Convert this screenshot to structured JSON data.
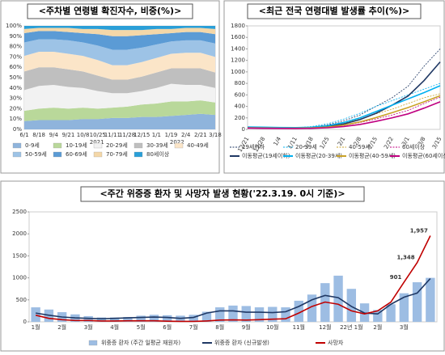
{
  "chart_data": [
    {
      "type": "area",
      "title": "<주차별 연령별 확진자수, 비중(%)>",
      "categories": [
        "6/1",
        "8/18",
        "9/4",
        "9/21",
        "10/8",
        "10/25",
        "11/11",
        "11/28",
        "12/15",
        "1/1",
        "1/19",
        "2/4",
        "2/21",
        "3/18"
      ],
      "annotations": [
        "2021",
        "2022"
      ],
      "ylim": [
        0,
        100
      ],
      "yticks": [
        {
          "value": 0,
          "label": "0%"
        },
        {
          "value": 10,
          "label": "10%"
        },
        {
          "value": 20,
          "label": "20%"
        },
        {
          "value": 30,
          "label": "30%"
        },
        {
          "value": 40,
          "label": "40%"
        },
        {
          "value": 50,
          "label": "50%"
        },
        {
          "value": 60,
          "label": "60%"
        },
        {
          "value": 70,
          "label": "70%"
        },
        {
          "value": 80,
          "label": "80%"
        },
        {
          "value": 90,
          "label": "90%"
        },
        {
          "value": 100,
          "label": "100%"
        }
      ],
      "grid": true,
      "series": [
        {
          "name": "0-9세",
          "color": "#8fb4dc",
          "values": [
            8,
            9,
            9,
            9,
            10,
            10,
            11,
            11,
            12,
            12,
            13,
            14,
            15,
            14
          ]
        },
        {
          "name": "10-19세",
          "color": "#b9d89a",
          "values": [
            10,
            11,
            12,
            11,
            11,
            10,
            10,
            11,
            12,
            13,
            14,
            13,
            13,
            12
          ]
        },
        {
          "name": "20-29세",
          "color": "#f2f2f2",
          "values": [
            20,
            22,
            22,
            21,
            19,
            17,
            14,
            13,
            13,
            15,
            17,
            16,
            15,
            14
          ]
        },
        {
          "name": "30-39세",
          "color": "#bfbfbf",
          "values": [
            18,
            18,
            17,
            17,
            16,
            15,
            13,
            13,
            14,
            15,
            15,
            16,
            16,
            15
          ]
        },
        {
          "name": "40-49세",
          "color": "#fbe5c8",
          "values": [
            15,
            15,
            15,
            15,
            15,
            15,
            14,
            14,
            14,
            14,
            14,
            15,
            15,
            15
          ]
        },
        {
          "name": "50-59세",
          "color": "#9dc3e6",
          "values": [
            13,
            12,
            12,
            13,
            13,
            14,
            15,
            15,
            14,
            13,
            12,
            12,
            12,
            13
          ]
        },
        {
          "name": "60-69세",
          "color": "#5b9bd5",
          "values": [
            9,
            8,
            8,
            8,
            9,
            11,
            13,
            13,
            12,
            10,
            8,
            8,
            8,
            9
          ]
        },
        {
          "name": "70-79세",
          "color": "#f4d7a8",
          "values": [
            4,
            3,
            3,
            4,
            4,
            5,
            6,
            6,
            5,
            5,
            4,
            4,
            4,
            5
          ]
        },
        {
          "name": "80세이상",
          "color": "#2a9fd8",
          "values": [
            3,
            2,
            2,
            2,
            3,
            3,
            4,
            4,
            4,
            3,
            3,
            2,
            2,
            3
          ]
        }
      ]
    },
    {
      "type": "line",
      "title": "<최근 전국 연령대별 발생률 추이(%)>",
      "categories": [
        "12/21",
        "12/28",
        "1/4",
        "1/11",
        "1/18",
        "1/25",
        "2/1",
        "2/8",
        "2/15",
        "2/22",
        "3/1",
        "3/8",
        "3/15"
      ],
      "ylim": [
        0,
        1800
      ],
      "yticks": [
        0,
        200,
        400,
        600,
        800,
        1000,
        1200,
        1400,
        1600,
        1800
      ],
      "grid": false,
      "series": [
        {
          "name": "19세이하",
          "color": "#1f3864",
          "dash": true,
          "values": [
            30,
            30,
            25,
            25,
            40,
            80,
            150,
            250,
            400,
            550,
            750,
            1100,
            1400
          ]
        },
        {
          "name": "20-39세",
          "color": "#00b0f0",
          "dash": true,
          "values": [
            40,
            35,
            30,
            30,
            50,
            100,
            180,
            280,
            400,
            500,
            600,
            700,
            800
          ]
        },
        {
          "name": "40-59세",
          "color": "#c9a227",
          "dash": true,
          "values": [
            25,
            22,
            20,
            20,
            30,
            60,
            110,
            180,
            270,
            350,
            450,
            550,
            620
          ]
        },
        {
          "name": "60세이상",
          "color": "#c00080",
          "dash": true,
          "values": [
            20,
            18,
            15,
            15,
            20,
            40,
            70,
            120,
            180,
            250,
            330,
            450,
            560
          ]
        },
        {
          "name": "이동평균(19세이하)",
          "color": "#1f3864",
          "values": [
            32,
            30,
            28,
            26,
            32,
            50,
            95,
            170,
            280,
            420,
            580,
            850,
            1172
          ]
        },
        {
          "name": "이동평균(20-39세)",
          "color": "#00b0f0",
          "values": [
            42,
            38,
            33,
            31,
            38,
            65,
            120,
            200,
            310,
            420,
            530,
            640,
            760
          ]
        },
        {
          "name": "이동평균(40-59세)",
          "color": "#c9a227",
          "values": [
            27,
            24,
            21,
            20,
            25,
            40,
            75,
            130,
            205,
            290,
            380,
            480,
            585
          ]
        },
        {
          "name": "이동평균(60세이상)",
          "color": "#c00080",
          "values": [
            22,
            19,
            17,
            15,
            18,
            28,
            50,
            85,
            140,
            200,
            270,
            370,
            480
          ]
        }
      ]
    },
    {
      "type": "combo",
      "title": "<주간 위중증 환자 및 사망자 발생 현황('22.3.19. 0시 기준)>",
      "categories": [
        "1월",
        null,
        "2월",
        null,
        "3월",
        null,
        "4월",
        null,
        "5월",
        null,
        "6월",
        null,
        "7월",
        null,
        "8월",
        null,
        "9월",
        null,
        "10월",
        null,
        "11월",
        null,
        "12월",
        null,
        "22년 1월",
        null,
        "2월",
        null,
        "3월",
        null,
        null
      ],
      "ylim": [
        0,
        2500
      ],
      "yticks": [
        0,
        500,
        1000,
        1500,
        2000,
        2500
      ],
      "grid": false,
      "series": [
        {
          "name": "위중증 환자 (주간 일평균 재원자)",
          "type": "bar",
          "color": "#9dbde3",
          "values": [
            330,
            280,
            220,
            170,
            130,
            100,
            100,
            110,
            140,
            160,
            150,
            140,
            160,
            230,
            330,
            370,
            360,
            330,
            340,
            330,
            480,
            620,
            880,
            1050,
            750,
            420,
            270,
            400,
            650,
            900,
            1000
          ]
        },
        {
          "name": "위중증 환자 (신규발생)",
          "type": "line",
          "color": "#1f3864",
          "values": [
            200,
            150,
            110,
            90,
            80,
            70,
            80,
            90,
            100,
            110,
            100,
            80,
            100,
            200,
            250,
            250,
            220,
            220,
            210,
            230,
            350,
            500,
            600,
            550,
            350,
            200,
            180,
            400,
            560,
            655,
            985
          ]
        },
        {
          "name": "사망자",
          "type": "line",
          "color": "#c00000",
          "values": [
            150,
            80,
            50,
            30,
            30,
            20,
            20,
            25,
            25,
            25,
            15,
            10,
            10,
            20,
            40,
            45,
            40,
            50,
            60,
            70,
            200,
            350,
            450,
            400,
            250,
            180,
            250,
            450,
            901,
            1348,
            1957
          ],
          "value_labels": [
            null,
            null,
            null,
            null,
            null,
            null,
            null,
            null,
            null,
            null,
            null,
            null,
            null,
            null,
            null,
            null,
            null,
            null,
            null,
            null,
            null,
            null,
            null,
            null,
            null,
            null,
            null,
            null,
            "901",
            "1,348",
            "1,957"
          ]
        }
      ]
    }
  ]
}
